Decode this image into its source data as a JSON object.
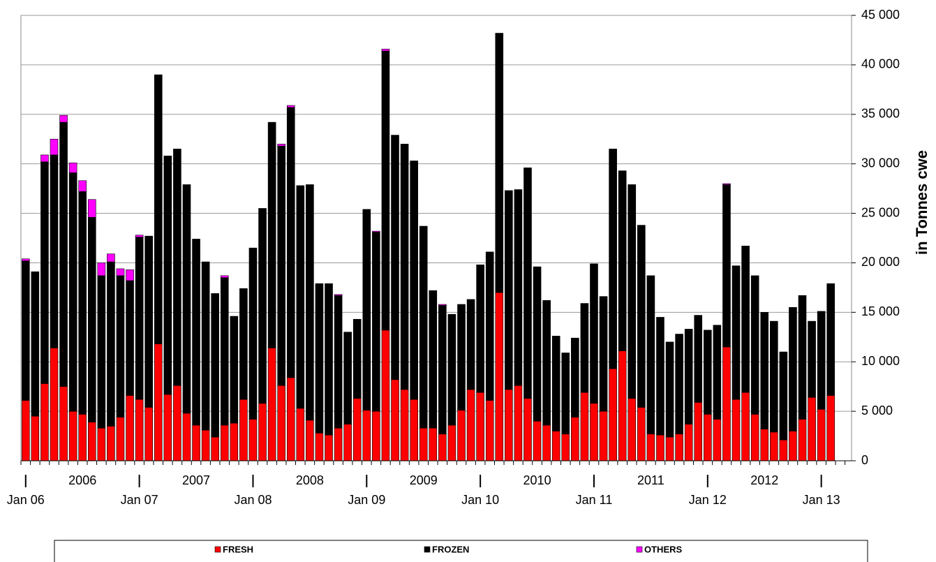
{
  "chart_data": {
    "type": "stacked_bar",
    "y_axis_label": "in Tonnes cwe",
    "categories": [
      "Jan 06",
      null,
      null,
      null,
      null,
      null,
      null,
      null,
      null,
      null,
      null,
      null,
      "Jan 07",
      null,
      null,
      null,
      null,
      null,
      null,
      null,
      null,
      null,
      null,
      null,
      "Jan 08",
      null,
      null,
      null,
      null,
      null,
      null,
      null,
      null,
      null,
      null,
      null,
      "Jan 09",
      null,
      null,
      null,
      null,
      null,
      null,
      null,
      null,
      null,
      null,
      null,
      "Jan 10",
      null,
      null,
      null,
      null,
      null,
      null,
      null,
      null,
      null,
      null,
      null,
      "Jan 11",
      null,
      null,
      null,
      null,
      null,
      null,
      null,
      null,
      null,
      null,
      null,
      "Jan 12",
      null,
      null,
      null,
      null,
      null,
      null,
      null,
      null,
      null,
      null,
      null,
      "Jan 13",
      null
    ],
    "year_labels": [
      "2006",
      "2007",
      "2008",
      "2009",
      "2010",
      "2011",
      "2012"
    ],
    "series": [
      {
        "name": "FRESH",
        "color": "#ff0000",
        "values": [
          6100,
          4500,
          7800,
          11400,
          7500,
          5000,
          4700,
          3900,
          3300,
          3500,
          4400,
          6600,
          6200,
          5400,
          11800,
          6700,
          7600,
          4800,
          3600,
          3100,
          2400,
          3600,
          3800,
          6200,
          4200,
          5800,
          11400,
          7600,
          8400,
          5300,
          4100,
          2800,
          2600,
          3300,
          3700,
          6300,
          5100,
          5000,
          13200,
          8200,
          7200,
          6200,
          3300,
          3300,
          2700,
          3600,
          5100,
          7200,
          6900,
          6100,
          17000,
          7200,
          7600,
          6300,
          4000,
          3600,
          3000,
          2700,
          4400,
          6900,
          5800,
          5000,
          9300,
          11100,
          6300,
          5400,
          2700,
          2600,
          2400,
          2700,
          3700,
          5900,
          4700,
          4200,
          11500,
          6200,
          6900,
          4700,
          3200,
          2900,
          2100,
          3000,
          4200,
          6400,
          5200,
          6600
        ]
      },
      {
        "name": "FROZEN",
        "color": "#000000",
        "values": [
          14100,
          14600,
          22400,
          19500,
          26700,
          24100,
          22500,
          20700,
          15400,
          16600,
          14300,
          11600,
          16400,
          17300,
          27200,
          24100,
          23900,
          23100,
          18800,
          17000,
          14500,
          14900,
          10800,
          11200,
          17300,
          19700,
          22800,
          24200,
          27300,
          22500,
          23800,
          15100,
          15300,
          13400,
          9300,
          8000,
          20300,
          18100,
          28200,
          24700,
          24800,
          24100,
          20400,
          13900,
          13000,
          11200,
          10700,
          9100,
          12900,
          15000,
          26200,
          20100,
          19800,
          23300,
          15600,
          12600,
          9600,
          8200,
          8000,
          9000,
          14100,
          11600,
          22200,
          18200,
          21600,
          18400,
          16000,
          11900,
          9600,
          10100,
          9600,
          8800,
          8500,
          9500,
          16400,
          13500,
          14800,
          14000,
          11800,
          11200,
          8900,
          12500,
          12500,
          7700,
          9900,
          11300
        ]
      },
      {
        "name": "OTHERS",
        "color": "#ff00ff",
        "values": [
          200,
          0,
          700,
          1600,
          700,
          1000,
          1100,
          1800,
          1300,
          800,
          700,
          1100,
          200,
          0,
          0,
          0,
          0,
          0,
          0,
          0,
          0,
          200,
          0,
          0,
          0,
          0,
          0,
          200,
          200,
          0,
          0,
          0,
          0,
          100,
          0,
          0,
          0,
          100,
          200,
          0,
          0,
          0,
          0,
          0,
          100,
          0,
          0,
          0,
          0,
          0,
          0,
          0,
          0,
          0,
          0,
          0,
          0,
          0,
          0,
          0,
          0,
          0,
          0,
          0,
          0,
          0,
          0,
          0,
          0,
          0,
          0,
          0,
          0,
          0,
          100,
          0,
          0,
          0,
          0,
          0,
          0,
          0,
          0,
          0,
          0,
          0
        ]
      }
    ],
    "ylim": [
      0,
      45000
    ],
    "yticks": [
      0,
      {
        "value": 5000,
        "label": "5 000"
      },
      {
        "value": 10000,
        "label": "10 000"
      },
      {
        "value": 15000,
        "label": "15 000"
      },
      {
        "value": 20000,
        "label": "20 000"
      },
      {
        "value": 25000,
        "label": "25 000"
      },
      {
        "value": 30000,
        "label": "30 000"
      },
      {
        "value": 35000,
        "label": "35 000"
      },
      {
        "value": 40000,
        "label": "40 000"
      },
      {
        "value": 45000,
        "label": "45 000"
      }
    ],
    "grid": true,
    "legend": "bottom"
  }
}
